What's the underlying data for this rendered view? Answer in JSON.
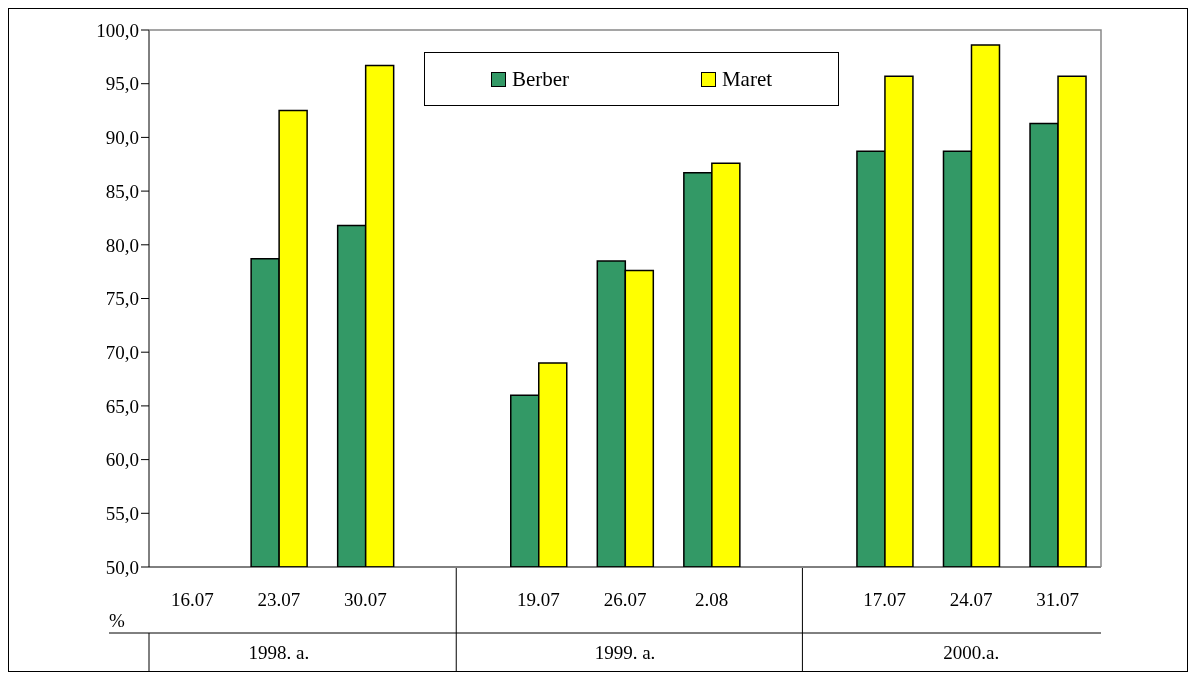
{
  "chart_data": {
    "type": "bar",
    "ylabel": "%",
    "categories": [
      "16.07",
      "23.07",
      "30.07",
      null,
      "19.07",
      "26.07",
      "2.08",
      null,
      "17.07",
      "24.07",
      "31.07"
    ],
    "series": [
      {
        "name": "Berber",
        "color": "#339966",
        "values": [
          null,
          78.7,
          81.8,
          null,
          66.0,
          78.5,
          86.7,
          null,
          88.7,
          88.7,
          91.3
        ]
      },
      {
        "name": "Maret",
        "color": "#ffff00",
        "values": [
          null,
          92.5,
          96.7,
          null,
          69.0,
          77.6,
          87.6,
          null,
          95.7,
          98.6,
          95.7
        ]
      }
    ],
    "ylim": [
      50,
      100
    ],
    "yticks": [
      {
        "value": 50,
        "label": "50,0"
      },
      {
        "value": 55,
        "label": "55,0"
      },
      {
        "value": 60,
        "label": "60,0"
      },
      {
        "value": 65,
        "label": "65,0"
      },
      {
        "value": 70,
        "label": "70,0"
      },
      {
        "value": 75,
        "label": "75,0"
      },
      {
        "value": 80,
        "label": "80,0"
      },
      {
        "value": 85,
        "label": "85,0"
      },
      {
        "value": 90,
        "label": "90,0"
      },
      {
        "value": 95,
        "label": "95,0"
      },
      {
        "value": 100,
        "label": "100,0"
      }
    ],
    "legend": "top",
    "annotations": [
      "1998. a.",
      "1999. a.",
      "2000.a."
    ]
  }
}
